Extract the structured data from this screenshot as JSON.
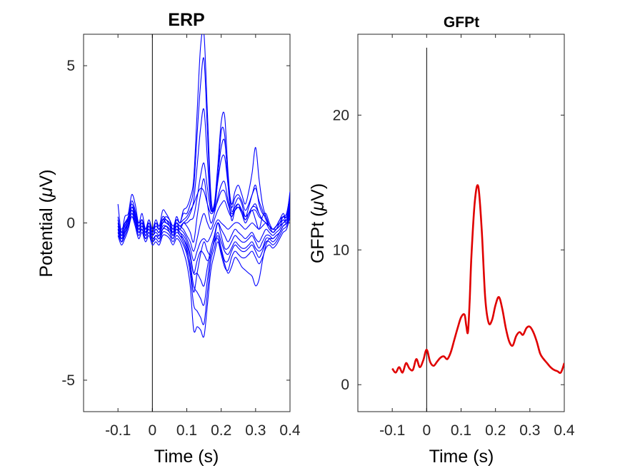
{
  "chart_data": [
    {
      "type": "line",
      "title": "ERP",
      "xlabel": "Time (s)",
      "ylabel_prefix": "Potential (",
      "ylabel_mu": "μ",
      "ylabel_suffix": "V)",
      "xlim": [
        -0.2,
        0.4
      ],
      "ylim": [
        -6,
        6
      ],
      "xticks": [
        -0.1,
        0,
        0.1,
        0.2,
        0.3,
        0.4
      ],
      "xtick_labels": [
        "-0.1",
        "0",
        "0.1",
        "0.2",
        "0.3",
        "0.4"
      ],
      "yticks": [
        -5,
        0,
        5
      ],
      "ytick_labels": [
        "-5",
        "0",
        "5"
      ],
      "zero_marker_x": 0,
      "line_color": "#0000ff",
      "x": [
        -0.1,
        -0.09,
        -0.08,
        -0.07,
        -0.06,
        -0.05,
        -0.04,
        -0.03,
        -0.02,
        -0.01,
        0,
        0.01,
        0.02,
        0.03,
        0.04,
        0.05,
        0.06,
        0.07,
        0.08,
        0.09,
        0.1,
        0.11,
        0.12,
        0.13,
        0.14,
        0.15,
        0.16,
        0.17,
        0.18,
        0.19,
        0.2,
        0.21,
        0.22,
        0.23,
        0.24,
        0.25,
        0.26,
        0.27,
        0.28,
        0.29,
        0.3,
        0.31,
        0.32,
        0.33,
        0.34,
        0.35,
        0.36,
        0.37,
        0.38,
        0.39,
        0.4
      ],
      "series": [
        {
          "values": [
            0.6,
            -0.3,
            0.2,
            0.3,
            0.9,
            0.6,
            0.0,
            0.3,
            -0.2,
            0.1,
            -0.2,
            0.1,
            -0.1,
            0.4,
            0.3,
            0.1,
            -0.2,
            0.2,
            0.0,
            0.4,
            0.5,
            0.8,
            1.4,
            3.5,
            5.6,
            6.0,
            3.5,
            0.9,
            0.4,
            1.4,
            2.9,
            2.8,
            1.2,
            0.1,
            0.4,
            0.6,
            0.3,
            0.0,
            0.2,
            0.4,
            0.1,
            -0.2,
            0.2,
            0.3,
            0.0,
            -0.2,
            -0.1,
            0.1,
            0.3,
            0.2,
            1.0
          ]
        },
        {
          "values": [
            0.2,
            -0.4,
            0.0,
            0.2,
            0.7,
            0.4,
            -0.1,
            0.1,
            -0.3,
            0.0,
            -0.3,
            0.0,
            -0.2,
            0.2,
            0.1,
            0.0,
            -0.3,
            0.1,
            0.0,
            0.3,
            0.3,
            0.6,
            1.1,
            2.8,
            4.4,
            5.2,
            2.9,
            0.6,
            0.6,
            1.8,
            3.2,
            3.4,
            1.6,
            0.4,
            0.6,
            0.8,
            0.6,
            0.2,
            0.5,
            0.9,
            1.2,
            0.6,
            0.3,
            0.2,
            -0.1,
            -0.3,
            -0.2,
            0.0,
            0.2,
            0.1,
            0.6
          ]
        },
        {
          "values": [
            0.0,
            -0.5,
            -0.2,
            0.1,
            0.5,
            0.3,
            -0.2,
            0.0,
            -0.4,
            -0.1,
            -0.4,
            -0.2,
            -0.3,
            0.1,
            0.0,
            -0.1,
            -0.4,
            -0.1,
            -0.2,
            0.0,
            0.1,
            0.3,
            0.7,
            1.8,
            3.0,
            3.6,
            2.0,
            0.5,
            0.6,
            1.5,
            2.4,
            2.6,
            1.4,
            0.6,
            1.0,
            1.2,
            0.9,
            0.6,
            1.0,
            1.6,
            2.4,
            1.4,
            0.6,
            0.2,
            -0.1,
            -0.2,
            -0.1,
            0.1,
            0.2,
            0.2,
            0.7
          ]
        },
        {
          "values": [
            0.1,
            -0.3,
            -0.1,
            0.2,
            0.6,
            0.3,
            -0.1,
            0.1,
            -0.3,
            0.0,
            -0.3,
            -0.1,
            -0.2,
            0.1,
            0.0,
            -0.1,
            -0.3,
            0.0,
            -0.1,
            0.0,
            0.0,
            0.1,
            0.2,
            0.8,
            1.5,
            1.9,
            1.1,
            0.4,
            0.5,
            1.3,
            2.0,
            2.1,
            1.2,
            0.5,
            0.8,
            0.9,
            0.7,
            0.4,
            0.6,
            0.9,
            1.1,
            0.7,
            0.4,
            0.1,
            -0.1,
            -0.2,
            -0.1,
            0.0,
            0.1,
            0.1,
            0.6
          ]
        },
        {
          "values": [
            -0.1,
            -0.4,
            -0.2,
            0.0,
            0.5,
            0.2,
            -0.2,
            -0.1,
            -0.3,
            -0.1,
            -0.4,
            -0.2,
            -0.3,
            0.0,
            0.1,
            -0.1,
            -0.3,
            0.0,
            -0.2,
            0.0,
            -0.1,
            -0.3,
            -0.6,
            0.2,
            0.9,
            1.4,
            0.6,
            0.0,
            0.3,
            0.8,
            1.2,
            1.3,
            0.7,
            0.2,
            0.5,
            0.6,
            0.4,
            0.1,
            0.3,
            0.5,
            0.6,
            0.3,
            0.1,
            0.0,
            -0.2,
            -0.3,
            -0.2,
            -0.1,
            0.1,
            0.0,
            0.4
          ]
        },
        {
          "values": [
            0.0,
            -0.2,
            0.0,
            0.1,
            0.4,
            0.2,
            -0.1,
            0.0,
            -0.2,
            0.1,
            -0.2,
            0.0,
            -0.1,
            0.1,
            0.2,
            0.1,
            -0.1,
            0.1,
            0.0,
            0.1,
            0.2,
            0.4,
            0.6,
            0.9,
            1.1,
            1.0,
            0.6,
            0.3,
            0.4,
            0.7,
            1.0,
            1.0,
            0.6,
            0.3,
            0.4,
            0.5,
            0.4,
            0.2,
            0.3,
            0.4,
            0.4,
            0.2,
            0.1,
            0.0,
            -0.1,
            -0.2,
            -0.1,
            0.0,
            0.2,
            0.2,
            0.8
          ]
        },
        {
          "values": [
            -0.3,
            -0.6,
            -0.3,
            0.0,
            0.3,
            0.1,
            -0.3,
            -0.2,
            -0.5,
            -0.3,
            -0.6,
            -0.4,
            -0.5,
            -0.2,
            -0.1,
            -0.3,
            -0.5,
            -0.2,
            -0.4,
            -0.5,
            -0.8,
            -1.4,
            -2.2,
            -1.6,
            -1.0,
            -0.6,
            -0.9,
            -1.0,
            -0.5,
            0.0,
            -0.2,
            -0.4,
            -0.6,
            -0.4,
            -0.2,
            -0.3,
            -0.4,
            -0.5,
            -0.4,
            -0.3,
            -0.5,
            -0.6,
            -0.4,
            -0.2,
            -0.3,
            -0.4,
            -0.3,
            -0.2,
            0.0,
            0.1,
            0.5
          ]
        },
        {
          "values": [
            -0.2,
            -0.5,
            -0.3,
            0.0,
            0.4,
            0.1,
            -0.3,
            -0.1,
            -0.4,
            -0.2,
            -0.5,
            -0.4,
            -0.4,
            -0.1,
            -0.1,
            -0.2,
            -0.4,
            -0.1,
            -0.3,
            -0.4,
            -0.6,
            -1.0,
            -1.6,
            -1.6,
            -1.8,
            -2.0,
            -1.4,
            -0.8,
            -0.4,
            0.0,
            -0.4,
            -0.8,
            -0.8,
            -0.6,
            -0.4,
            -0.5,
            -0.6,
            -0.6,
            -0.5,
            -0.4,
            -0.6,
            -0.8,
            -0.6,
            -0.4,
            -0.4,
            -0.5,
            -0.4,
            -0.3,
            -0.1,
            0.0,
            0.3
          ]
        },
        {
          "values": [
            -0.3,
            -0.6,
            -0.4,
            -0.1,
            0.3,
            0.0,
            -0.4,
            -0.2,
            -0.5,
            -0.3,
            -0.6,
            -0.5,
            -0.6,
            -0.3,
            -0.3,
            -0.4,
            -0.6,
            -0.4,
            -0.5,
            -0.7,
            -1.0,
            -1.6,
            -2.6,
            -2.8,
            -3.0,
            -3.2,
            -2.2,
            -1.2,
            -0.8,
            -0.4,
            -0.8,
            -1.2,
            -1.2,
            -0.9,
            -0.7,
            -0.8,
            -0.9,
            -0.9,
            -0.8,
            -0.7,
            -0.9,
            -1.1,
            -0.9,
            -0.6,
            -0.6,
            -0.7,
            -0.6,
            -0.4,
            -0.2,
            -0.1,
            0.3
          ]
        },
        {
          "values": [
            -0.4,
            -0.7,
            -0.5,
            -0.2,
            0.2,
            -0.1,
            -0.5,
            -0.3,
            -0.6,
            -0.4,
            -0.7,
            -0.6,
            -0.7,
            -0.4,
            -0.4,
            -0.5,
            -0.7,
            -0.5,
            -0.6,
            -0.9,
            -1.3,
            -2.0,
            -3.4,
            -3.3,
            -3.4,
            -3.6,
            -2.6,
            -1.5,
            -1.0,
            -0.6,
            -1.0,
            -1.4,
            -1.5,
            -1.1,
            -0.9,
            -1.0,
            -1.1,
            -1.1,
            -1.0,
            -0.9,
            -1.1,
            -1.3,
            -1.1,
            -0.8,
            -0.7,
            -0.8,
            -0.7,
            -0.5,
            -0.3,
            -0.2,
            0.2
          ]
        },
        {
          "values": [
            -0.2,
            -0.4,
            -0.3,
            0.0,
            0.3,
            0.1,
            -0.2,
            -0.1,
            -0.3,
            -0.2,
            -0.4,
            -0.3,
            -0.4,
            -0.2,
            -0.1,
            -0.2,
            -0.4,
            -0.2,
            -0.3,
            -0.5,
            -0.7,
            -1.1,
            -1.6,
            -1.2,
            -0.9,
            -1.0,
            -1.2,
            -1.0,
            -0.6,
            -0.5,
            -0.9,
            -1.3,
            -1.6,
            -1.4,
            -1.1,
            -1.2,
            -1.4,
            -1.5,
            -1.6,
            -1.7,
            -2.0,
            -1.8,
            -1.2,
            -0.7,
            -0.5,
            -0.5,
            -0.4,
            -0.3,
            -0.1,
            0.0,
            0.4
          ]
        },
        {
          "values": [
            0.1,
            -0.3,
            -0.1,
            0.2,
            0.5,
            0.3,
            0.0,
            0.1,
            -0.2,
            0.0,
            -0.3,
            -0.1,
            -0.2,
            0.1,
            0.1,
            0.0,
            -0.2,
            0.0,
            -0.1,
            -0.2,
            -0.4,
            -0.6,
            -0.9,
            -0.5,
            0.0,
            0.3,
            0.0,
            -0.2,
            0.1,
            0.4,
            0.6,
            0.7,
            0.4,
            0.2,
            0.4,
            0.5,
            0.3,
            0.1,
            0.3,
            0.5,
            0.5,
            0.3,
            0.1,
            0.0,
            -0.1,
            -0.2,
            -0.1,
            0.0,
            0.2,
            0.3,
            0.9
          ]
        },
        {
          "values": [
            -0.1,
            -0.5,
            -0.2,
            0.1,
            0.4,
            0.2,
            -0.2,
            0.0,
            -0.3,
            -0.1,
            -0.4,
            -0.2,
            -0.3,
            0.0,
            0.0,
            -0.1,
            -0.3,
            -0.1,
            -0.2,
            -0.3,
            -0.5,
            -0.8,
            -1.2,
            -0.9,
            -0.6,
            -0.5,
            -0.6,
            -0.4,
            -0.1,
            0.1,
            0.0,
            -0.1,
            -0.2,
            -0.1,
            0.0,
            0.0,
            -0.1,
            -0.2,
            -0.1,
            0.0,
            -0.1,
            -0.2,
            -0.1,
            0.0,
            -0.1,
            -0.2,
            -0.2,
            -0.1,
            0.0,
            0.1,
            0.5
          ]
        },
        {
          "values": [
            -0.2,
            -0.6,
            -0.4,
            -0.1,
            0.2,
            0.0,
            -0.3,
            -0.2,
            -0.5,
            -0.3,
            -0.5,
            -0.4,
            -0.5,
            -0.2,
            -0.2,
            -0.3,
            -0.5,
            -0.3,
            -0.4,
            -0.6,
            -0.9,
            -1.3,
            -2.0,
            -2.2,
            -2.4,
            -2.6,
            -1.8,
            -1.0,
            -0.6,
            -0.3,
            -0.6,
            -0.9,
            -1.0,
            -0.8,
            -0.6,
            -0.7,
            -0.8,
            -0.8,
            -0.7,
            -0.6,
            -0.8,
            -0.9,
            -0.8,
            -0.5,
            -0.5,
            -0.6,
            -0.5,
            -0.3,
            -0.1,
            0.0,
            0.4
          ]
        }
      ]
    },
    {
      "type": "line",
      "title": "GFPt",
      "xlabel": "Time (s)",
      "ylabel_prefix": "GFPt (",
      "ylabel_mu": "μ",
      "ylabel_suffix": "V)",
      "xlim": [
        -0.2,
        0.4
      ],
      "ylim": [
        -2,
        26
      ],
      "xticks": [
        -0.1,
        0,
        0.1,
        0.2,
        0.3,
        0.4
      ],
      "xtick_labels": [
        "-0.1",
        "0",
        "0.1",
        "0.2",
        "0.3",
        "0.4"
      ],
      "yticks": [
        0,
        10,
        20
      ],
      "ytick_labels": [
        "0",
        "10",
        "20"
      ],
      "zero_marker_x": 0,
      "zero_marker_top": 25,
      "line_color": "#e00000",
      "x": [
        -0.1,
        -0.09,
        -0.08,
        -0.07,
        -0.06,
        -0.05,
        -0.04,
        -0.03,
        -0.02,
        -0.01,
        0,
        0.01,
        0.02,
        0.03,
        0.04,
        0.05,
        0.06,
        0.07,
        0.08,
        0.09,
        0.1,
        0.11,
        0.115,
        0.12,
        0.125,
        0.13,
        0.14,
        0.15,
        0.16,
        0.17,
        0.18,
        0.19,
        0.2,
        0.21,
        0.22,
        0.23,
        0.24,
        0.25,
        0.26,
        0.27,
        0.28,
        0.29,
        0.3,
        0.31,
        0.32,
        0.33,
        0.34,
        0.35,
        0.36,
        0.37,
        0.38,
        0.39,
        0.4
      ],
      "values": [
        1.2,
        0.9,
        1.3,
        0.9,
        1.6,
        1.2,
        1.1,
        1.9,
        1.3,
        1.8,
        2.6,
        1.7,
        1.4,
        1.7,
        2.0,
        2.1,
        1.9,
        2.4,
        3.3,
        4.2,
        5.0,
        5.2,
        4.4,
        3.9,
        6.2,
        9.5,
        13.6,
        14.7,
        11.5,
        6.5,
        4.6,
        4.8,
        5.9,
        6.5,
        5.6,
        4.2,
        3.2,
        2.9,
        3.6,
        3.9,
        3.7,
        4.2,
        4.3,
        3.9,
        3.2,
        2.3,
        1.9,
        1.6,
        1.3,
        1.1,
        1.0,
        0.9,
        1.6
      ]
    }
  ]
}
